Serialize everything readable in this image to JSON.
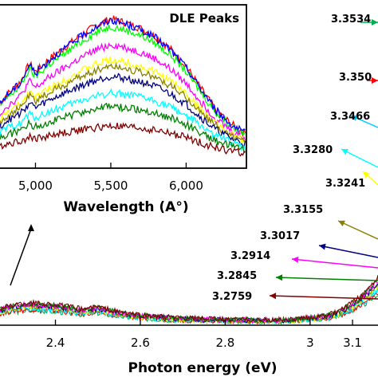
{
  "chart_data": [
    {
      "type": "line",
      "title": "",
      "xlabel": "Photon energy (eV)",
      "ylabel": "",
      "xlim": [
        2.26,
        3.16
      ],
      "x_ticks": [
        2.4,
        2.6,
        2.8,
        3.0,
        3.1
      ],
      "x_tick_labels": [
        "2.4",
        "2.6",
        "2.8",
        "3",
        "3.1"
      ],
      "grid": false,
      "legend": "none",
      "series": [
        {
          "label": "3.3534",
          "color": "#00b050"
        },
        {
          "label": "3.350",
          "color": "#ff0000"
        },
        {
          "label": "3.3466",
          "color": "#00ccff"
        },
        {
          "label": "3.3280",
          "color": "#00ffff"
        },
        {
          "label": "3.3241",
          "color": "#ffff00"
        },
        {
          "label": "3.3155",
          "color": "#8b8000"
        },
        {
          "label": "3.3017",
          "color": "#000080"
        },
        {
          "label": "3.2914",
          "color": "#ff00ff"
        },
        {
          "label": "3.2845",
          "color": "#008000"
        },
        {
          "label": "3.2759",
          "color": "#800000"
        }
      ],
      "profile_x": [
        2.26,
        2.3,
        2.34,
        2.38,
        2.42,
        2.46,
        2.5,
        2.55,
        2.6,
        2.7,
        2.8,
        2.9,
        2.96,
        3.0,
        3.04,
        3.07,
        3.1,
        3.13,
        3.16
      ],
      "profile_y": [
        0.13,
        0.18,
        0.2,
        0.19,
        0.17,
        0.14,
        0.16,
        0.11,
        0.08,
        0.05,
        0.04,
        0.035,
        0.04,
        0.06,
        0.08,
        0.12,
        0.2,
        0.3,
        0.45
      ]
    },
    {
      "type": "line",
      "title": "DLE Peaks",
      "xlabel": "Wavelength (A°)",
      "ylabel": "",
      "xlim": [
        4500,
        6400
      ],
      "x_ticks": [
        4500,
        5000,
        5500,
        6000
      ],
      "x_tick_labels": [
        "4,500",
        "5,000",
        "5,500",
        "6,000"
      ],
      "ylim": [
        0,
        1
      ],
      "grid": false,
      "profile_x": [
        4500,
        4600,
        4700,
        4800,
        4900,
        4960,
        5000,
        5100,
        5200,
        5300,
        5400,
        5500,
        5600,
        5700,
        5800,
        5900,
        6000,
        6100,
        6200,
        6300,
        6400
      ],
      "profile_y": [
        0.0,
        0.1,
        0.3,
        0.45,
        0.55,
        0.68,
        0.62,
        0.72,
        0.8,
        0.88,
        0.95,
        1.0,
        0.97,
        0.93,
        0.87,
        0.78,
        0.66,
        0.5,
        0.35,
        0.25,
        0.18
      ],
      "series": [
        {
          "color": "#ff0000",
          "peak": 0.93
        },
        {
          "color": "#00ff00",
          "peak": 0.88
        },
        {
          "color": "#0000ff",
          "peak": 0.92
        },
        {
          "color": "#ff00ff",
          "peak": 0.76
        },
        {
          "color": "#ffff00",
          "peak": 0.66
        },
        {
          "color": "#8b8000",
          "peak": 0.62
        },
        {
          "color": "#000080",
          "peak": 0.55
        },
        {
          "color": "#00ffff",
          "peak": 0.44
        },
        {
          "color": "#008000",
          "peak": 0.35
        },
        {
          "color": "#800000",
          "peak": 0.22
        }
      ]
    }
  ]
}
